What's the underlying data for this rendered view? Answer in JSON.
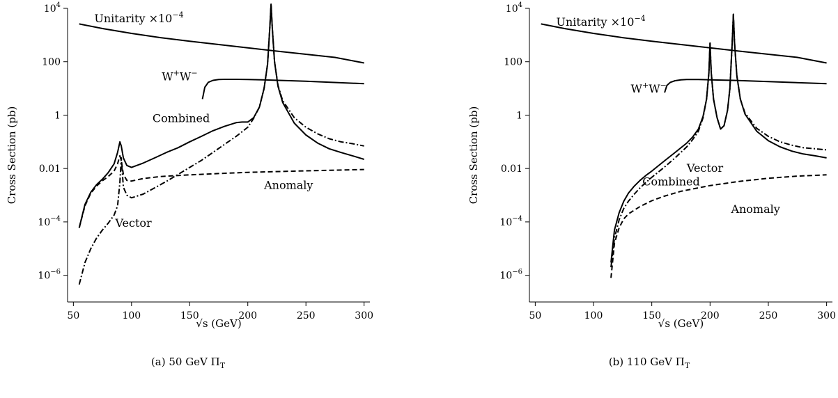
{
  "chart_data": [
    {
      "type": "line",
      "panel": "a",
      "caption": "(a) 50 GeV Π",
      "caption_sub": "T",
      "xlabel": "√s (GeV)",
      "ylabel": "Cross Section (pb)",
      "y_scale": "log",
      "xlim": [
        45,
        305
      ],
      "ylim": [
        1e-07,
        10000
      ],
      "xticks": [
        50,
        100,
        150,
        200,
        250,
        300
      ],
      "yticks": [
        {
          "value": 10000,
          "label": "10",
          "sup": "4"
        },
        {
          "value": 100,
          "label": "100",
          "sup": ""
        },
        {
          "value": 1,
          "label": "1",
          "sup": ""
        },
        {
          "value": 0.01,
          "label": "0.01",
          "sup": ""
        },
        {
          "value": 0.0001,
          "label": "10",
          "sup": "−4"
        },
        {
          "value": 1e-06,
          "label": "10",
          "sup": "−6"
        }
      ],
      "annotations": [
        {
          "text": "Unitarity ×10",
          "sup": "−4",
          "x": 68,
          "y": 3000
        },
        {
          "text": "W",
          "sup": "+",
          "text2": "W",
          "sup2": "−",
          "x": 126,
          "y": 20
        },
        {
          "text": "Combined",
          "x": 118,
          "y": 0.55
        },
        {
          "text": "Anomaly",
          "x": 214,
          "y": 0.0017
        },
        {
          "text": "Vector",
          "x": 86,
          "y": 6.5e-05
        }
      ],
      "series": [
        {
          "label": "Unitarity ×10⁻⁴",
          "style": "solid",
          "x": [
            55,
            75,
            100,
            125,
            150,
            175,
            200,
            225,
            250,
            275,
            300
          ],
          "y": [
            2600,
            1750,
            1150,
            800,
            590,
            440,
            330,
            250,
            190,
            145,
            90
          ]
        },
        {
          "label": "W⁺W⁻",
          "style": "solid",
          "x": [
            161,
            163,
            166,
            170,
            175,
            180,
            190,
            200,
            220,
            250,
            300
          ],
          "y": [
            4,
            11,
            17,
            20,
            21.5,
            22,
            22,
            21.5,
            20.5,
            18.5,
            15
          ]
        },
        {
          "label": "Combined",
          "style": "solid",
          "x": [
            55,
            60,
            65,
            70,
            75,
            80,
            85,
            88,
            90,
            91.2,
            93,
            96,
            100,
            110,
            120,
            130,
            140,
            150,
            160,
            170,
            180,
            190,
            195,
            200,
            205,
            210,
            214,
            217,
            219,
            220,
            221,
            223,
            226,
            230,
            240,
            250,
            260,
            270,
            280,
            290,
            300
          ],
          "y": [
            6e-05,
            0.00045,
            0.0013,
            0.0025,
            0.004,
            0.007,
            0.015,
            0.04,
            0.1,
            0.07,
            0.025,
            0.013,
            0.011,
            0.016,
            0.025,
            0.04,
            0.06,
            0.1,
            0.16,
            0.26,
            0.38,
            0.52,
            0.55,
            0.55,
            0.8,
            2.0,
            10,
            80,
            2000,
            20000,
            2000,
            100,
            12,
            3,
            0.5,
            0.18,
            0.09,
            0.055,
            0.04,
            0.03,
            0.022
          ]
        },
        {
          "label": "Anomaly",
          "style": "dashed",
          "x": [
            55,
            60,
            65,
            70,
            75,
            80,
            85,
            88,
            90,
            91.2,
            93,
            96,
            100,
            110,
            125,
            150,
            175,
            200,
            250,
            300
          ],
          "y": [
            6e-05,
            0.0004,
            0.0012,
            0.0022,
            0.0035,
            0.005,
            0.008,
            0.015,
            0.03,
            0.02,
            0.006,
            0.0036,
            0.0034,
            0.0042,
            0.005,
            0.0058,
            0.0065,
            0.0072,
            0.0082,
            0.0092
          ]
        },
        {
          "label": "Vector",
          "style": "dashdot",
          "x": [
            55,
            60,
            65,
            70,
            75,
            80,
            85,
            88,
            90,
            91.2,
            93,
            96,
            100,
            110,
            120,
            130,
            140,
            150,
            160,
            170,
            180,
            190,
            200,
            205,
            210,
            214,
            217,
            219,
            220,
            221,
            223,
            226,
            230,
            240,
            250,
            260,
            270,
            280,
            290,
            300
          ],
          "y": [
            4.5e-07,
            3e-06,
            1e-05,
            2.5e-05,
            5e-05,
            9e-05,
            0.00018,
            0.0004,
            0.003,
            0.025,
            0.002,
            0.001,
            0.0008,
            0.0011,
            0.0019,
            0.0033,
            0.006,
            0.011,
            0.02,
            0.04,
            0.08,
            0.16,
            0.35,
            0.75,
            2.0,
            10,
            80,
            2000,
            20000,
            2000,
            100,
            13,
            3.5,
            0.8,
            0.35,
            0.2,
            0.13,
            0.1,
            0.085,
            0.07
          ]
        }
      ]
    },
    {
      "type": "line",
      "panel": "b",
      "caption": "(b) 110 GeV Π",
      "caption_sub": "T",
      "xlabel": "√s (GeV)",
      "ylabel": "Cross Section (pb)",
      "y_scale": "log",
      "xlim": [
        45,
        305
      ],
      "ylim": [
        1e-07,
        10000
      ],
      "xticks": [
        50,
        100,
        150,
        200,
        250,
        300
      ],
      "yticks": [
        {
          "value": 10000,
          "label": "10",
          "sup": "4"
        },
        {
          "value": 100,
          "label": "100",
          "sup": ""
        },
        {
          "value": 1,
          "label": "1",
          "sup": ""
        },
        {
          "value": 0.01,
          "label": "0.01",
          "sup": ""
        },
        {
          "value": 0.0001,
          "label": "10",
          "sup": "−4"
        },
        {
          "value": 1e-06,
          "label": "10",
          "sup": "−6"
        }
      ],
      "annotations": [
        {
          "text": "Unitarity ×10",
          "sup": "−4",
          "x": 68,
          "y": 2200
        },
        {
          "text": "W",
          "sup": "+",
          "text2": "W",
          "sup2": "−",
          "x": 132,
          "y": 7
        },
        {
          "text": "Combined",
          "x": 142,
          "y": 0.0023
        },
        {
          "text": "Vector",
          "x": 180,
          "y": 0.0075
        },
        {
          "text": "Anomaly",
          "x": 218,
          "y": 0.00022
        }
      ],
      "series": [
        {
          "label": "Unitarity ×10⁻⁴",
          "style": "solid",
          "x": [
            55,
            75,
            100,
            125,
            150,
            175,
            200,
            225,
            250,
            275,
            300
          ],
          "y": [
            2600,
            1750,
            1150,
            800,
            590,
            440,
            330,
            250,
            190,
            145,
            90
          ]
        },
        {
          "label": "W⁺W⁻",
          "style": "solid",
          "x": [
            161,
            163,
            166,
            170,
            175,
            180,
            190,
            200,
            220,
            250,
            300
          ],
          "y": [
            7,
            13,
            17,
            19.5,
            21,
            21.5,
            21.5,
            21,
            20,
            18,
            15
          ]
        },
        {
          "label": "Combined",
          "style": "solid",
          "x": [
            115,
            118,
            122,
            126,
            130,
            135,
            140,
            145,
            150,
            160,
            170,
            180,
            185,
            190,
            194,
            197,
            199,
            200,
            201,
            203,
            206,
            209,
            212,
            215,
            217,
            219,
            220,
            221,
            223,
            226,
            230,
            240,
            250,
            260,
            270,
            280,
            290,
            300
          ],
          "y": [
            3e-06,
            5e-05,
            0.00022,
            0.0006,
            0.0012,
            0.0022,
            0.0036,
            0.0055,
            0.008,
            0.018,
            0.04,
            0.09,
            0.15,
            0.3,
            0.9,
            4,
            40,
            500,
            40,
            4,
            0.8,
            0.3,
            0.4,
            1.5,
            10,
            500,
            6000,
            500,
            30,
            4,
            1.1,
            0.25,
            0.11,
            0.065,
            0.045,
            0.035,
            0.03,
            0.025
          ]
        },
        {
          "label": "Anomaly",
          "style": "dashed",
          "x": [
            115,
            118,
            122,
            126,
            130,
            140,
            150,
            160,
            175,
            200,
            225,
            250,
            275,
            300
          ],
          "y": [
            8e-07,
            1.6e-05,
            6e-05,
            0.00013,
            0.0002,
            0.00038,
            0.00062,
            0.0009,
            0.0014,
            0.0023,
            0.0033,
            0.0043,
            0.0052,
            0.0058
          ]
        },
        {
          "label": "Vector",
          "style": "dashdot",
          "x": [
            115,
            118,
            122,
            126,
            130,
            135,
            140,
            145,
            150,
            160,
            170,
            180,
            185,
            190,
            194,
            197,
            199,
            200,
            201,
            203,
            206,
            209,
            212,
            215,
            217,
            219,
            220,
            221,
            223,
            226,
            230,
            240,
            250,
            260,
            270,
            280,
            290,
            300
          ],
          "y": [
            2e-06,
            2.5e-05,
            0.00012,
            0.00032,
            0.0006,
            0.0011,
            0.0019,
            0.003,
            0.0047,
            0.0105,
            0.025,
            0.065,
            0.12,
            0.25,
            0.8,
            4,
            40,
            500,
            40,
            4,
            0.8,
            0.3,
            0.4,
            1.5,
            10,
            500,
            6000,
            500,
            30,
            4,
            1.2,
            0.32,
            0.16,
            0.1,
            0.075,
            0.06,
            0.055,
            0.05
          ]
        }
      ]
    }
  ]
}
